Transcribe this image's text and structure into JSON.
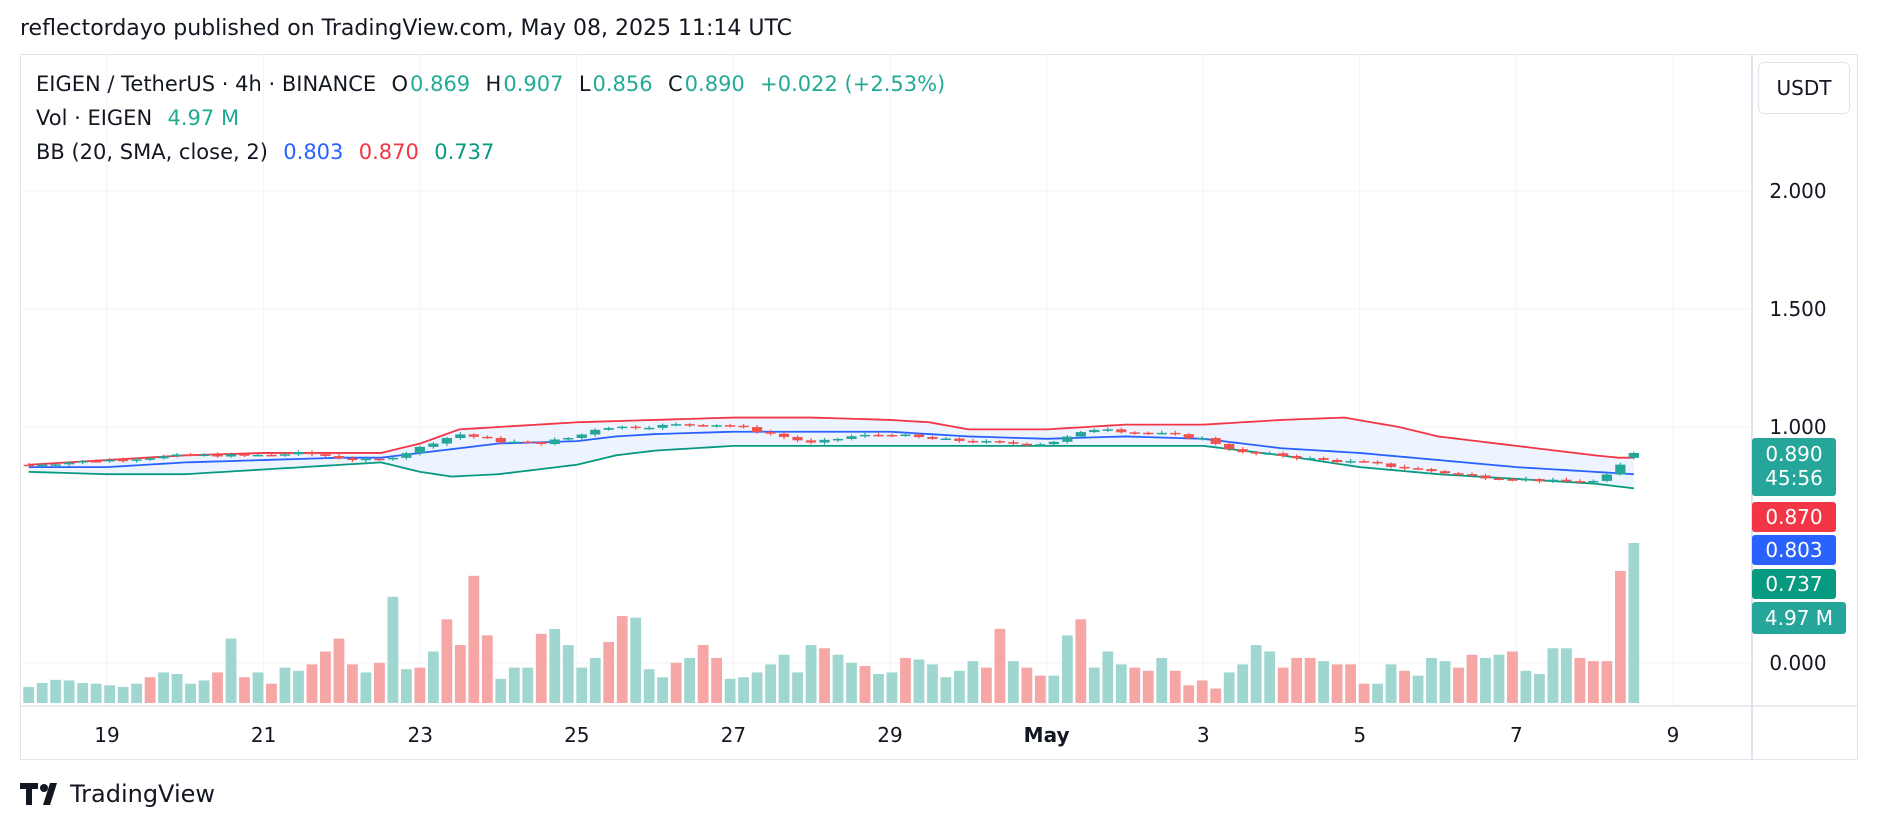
{
  "header": {
    "publisher": "reflectordayo published on TradingView.com, May 08, 2025 11:14 UTC"
  },
  "legend": {
    "symbol": "EIGEN / TetherUS · 4h · BINANCE",
    "o_label": "O",
    "o_value": "0.869",
    "h_label": "H",
    "h_value": "0.907",
    "l_label": "L",
    "l_value": "0.856",
    "c_label": "C",
    "c_value": "0.890",
    "change": "+0.022 (+2.53%)",
    "vol_label": "Vol · EIGEN",
    "vol_value": "4.97 M",
    "bb_label": "BB (20, SMA, close, 2)",
    "bb_basis": "0.803",
    "bb_upper": "0.870",
    "bb_lower": "0.737"
  },
  "currency_button": "USDT",
  "badges": {
    "price": "0.890",
    "countdown": "45:56",
    "upper": "0.870",
    "basis": "0.803",
    "lower": "0.737",
    "volume": "4.97 M"
  },
  "brand": {
    "name": "TradingView"
  },
  "colors": {
    "up": "#26a69a",
    "down": "#ef5350",
    "vol_up": "#9fd6cf",
    "vol_down": "#f6a6a4",
    "bb_upper": "#f23645",
    "bb_basis": "#2962ff",
    "bb_lower": "#089981",
    "bb_fill": "#e9f1ff"
  },
  "chart_data": {
    "type": "candlestick",
    "interval": "4h",
    "price_axis": {
      "ticks": [
        "2.000",
        "1.500",
        "1.000",
        "0.000"
      ],
      "tick_values": [
        2.0,
        1.5,
        1.0,
        0.0
      ]
    },
    "x_axis": {
      "ticks": [
        "19",
        "21",
        "23",
        "25",
        "27",
        "29",
        "May",
        "3",
        "5",
        "7",
        "9"
      ],
      "tick_days": [
        19,
        21,
        23,
        25,
        27,
        29,
        31,
        33,
        35,
        37,
        39
      ]
    },
    "price_range": [
      0.0,
      2.0
    ],
    "volume_max": 4.97,
    "candle_close_anchors": [
      [
        18.0,
        0.84
      ],
      [
        19.0,
        0.86
      ],
      [
        20.0,
        0.88
      ],
      [
        21.0,
        0.88
      ],
      [
        21.5,
        0.89
      ],
      [
        22.2,
        0.86
      ],
      [
        22.5,
        0.86
      ],
      [
        22.9,
        0.9
      ],
      [
        23.2,
        0.94
      ],
      [
        23.5,
        0.97
      ],
      [
        24.0,
        0.94
      ],
      [
        24.5,
        0.93
      ],
      [
        25.0,
        0.96
      ],
      [
        25.3,
        1.0
      ],
      [
        25.8,
        1.0
      ],
      [
        26.3,
        1.01
      ],
      [
        26.9,
        1.01
      ],
      [
        27.5,
        0.97
      ],
      [
        28.0,
        0.93
      ],
      [
        28.5,
        0.96
      ],
      [
        29.0,
        0.97
      ],
      [
        29.5,
        0.95
      ],
      [
        30.0,
        0.94
      ],
      [
        30.5,
        0.93
      ],
      [
        31.0,
        0.93
      ],
      [
        31.3,
        0.96
      ],
      [
        31.7,
        1.0
      ],
      [
        32.0,
        0.98
      ],
      [
        32.5,
        0.97
      ],
      [
        33.0,
        0.95
      ],
      [
        33.5,
        0.89
      ],
      [
        34.0,
        0.88
      ],
      [
        34.5,
        0.86
      ],
      [
        35.0,
        0.85
      ],
      [
        35.5,
        0.83
      ],
      [
        36.0,
        0.81
      ],
      [
        36.5,
        0.79
      ],
      [
        37.0,
        0.78
      ],
      [
        37.5,
        0.77
      ],
      [
        38.0,
        0.77
      ],
      [
        38.2,
        0.8
      ],
      [
        38.4,
        0.86
      ],
      [
        38.5,
        0.89
      ]
    ],
    "bb_upper_anchors": [
      [
        18.0,
        0.84
      ],
      [
        19.0,
        0.86
      ],
      [
        20.0,
        0.88
      ],
      [
        21.0,
        0.89
      ],
      [
        22.0,
        0.89
      ],
      [
        22.5,
        0.89
      ],
      [
        23.0,
        0.93
      ],
      [
        23.5,
        0.99
      ],
      [
        24.0,
        1.0
      ],
      [
        25.0,
        1.02
      ],
      [
        26.0,
        1.03
      ],
      [
        27.0,
        1.04
      ],
      [
        28.0,
        1.04
      ],
      [
        29.0,
        1.03
      ],
      [
        29.5,
        1.02
      ],
      [
        30.0,
        0.99
      ],
      [
        31.0,
        0.99
      ],
      [
        32.0,
        1.01
      ],
      [
        33.0,
        1.01
      ],
      [
        34.0,
        1.03
      ],
      [
        34.8,
        1.04
      ],
      [
        35.5,
        1.0
      ],
      [
        36.0,
        0.96
      ],
      [
        37.0,
        0.92
      ],
      [
        38.0,
        0.88
      ],
      [
        38.3,
        0.87
      ],
      [
        38.5,
        0.87
      ]
    ],
    "bb_basis_anchors": [
      [
        18.0,
        0.83
      ],
      [
        19.0,
        0.83
      ],
      [
        20.0,
        0.85
      ],
      [
        21.0,
        0.86
      ],
      [
        22.0,
        0.87
      ],
      [
        22.5,
        0.87
      ],
      [
        23.0,
        0.89
      ],
      [
        23.5,
        0.91
      ],
      [
        24.0,
        0.93
      ],
      [
        25.0,
        0.94
      ],
      [
        25.5,
        0.96
      ],
      [
        26.0,
        0.97
      ],
      [
        27.0,
        0.98
      ],
      [
        28.0,
        0.98
      ],
      [
        29.0,
        0.98
      ],
      [
        30.0,
        0.96
      ],
      [
        31.0,
        0.95
      ],
      [
        32.0,
        0.96
      ],
      [
        33.0,
        0.95
      ],
      [
        34.0,
        0.91
      ],
      [
        35.0,
        0.89
      ],
      [
        36.0,
        0.86
      ],
      [
        37.0,
        0.83
      ],
      [
        38.0,
        0.81
      ],
      [
        38.5,
        0.8
      ]
    ],
    "bb_lower_anchors": [
      [
        18.0,
        0.81
      ],
      [
        19.0,
        0.8
      ],
      [
        20.0,
        0.8
      ],
      [
        21.0,
        0.82
      ],
      [
        21.5,
        0.83
      ],
      [
        22.5,
        0.85
      ],
      [
        23.0,
        0.81
      ],
      [
        23.4,
        0.79
      ],
      [
        24.0,
        0.8
      ],
      [
        25.0,
        0.84
      ],
      [
        25.5,
        0.88
      ],
      [
        26.0,
        0.9
      ],
      [
        27.0,
        0.92
      ],
      [
        28.0,
        0.92
      ],
      [
        29.0,
        0.92
      ],
      [
        31.0,
        0.92
      ],
      [
        33.0,
        0.92
      ],
      [
        34.0,
        0.88
      ],
      [
        35.0,
        0.83
      ],
      [
        36.0,
        0.8
      ],
      [
        37.0,
        0.78
      ],
      [
        38.0,
        0.76
      ],
      [
        38.5,
        0.74
      ]
    ],
    "volume_bars": [
      0.5,
      0.62,
      0.72,
      0.7,
      0.62,
      0.6,
      0.55,
      0.5,
      0.6,
      0.8,
      0.95,
      0.9,
      0.6,
      0.7,
      0.95,
      2.0,
      0.8,
      0.95,
      0.6,
      1.1,
      1.0,
      1.2,
      1.6,
      2.0,
      1.2,
      0.95,
      1.25,
      3.3,
      1.05,
      1.1,
      1.6,
      2.6,
      1.8,
      3.95,
      2.1,
      0.75,
      1.1,
      1.1,
      2.15,
      2.3,
      1.8,
      1.1,
      1.4,
      1.9,
      2.7,
      2.65,
      1.05,
      0.8,
      1.25,
      1.4,
      1.8,
      1.4,
      0.75,
      0.8,
      0.95,
      1.2,
      1.5,
      0.95,
      1.8,
      1.7,
      1.5,
      1.25,
      1.15,
      0.9,
      0.95,
      1.4,
      1.35,
      1.2,
      0.8,
      1.0,
      1.3,
      1.1,
      2.3,
      1.3,
      1.1,
      0.85,
      0.85,
      2.1,
      2.6,
      1.1,
      1.6,
      1.2,
      1.1,
      1.0,
      1.4,
      1.0,
      0.55,
      0.7,
      0.45,
      0.95,
      1.2,
      1.8,
      1.6,
      1.1,
      1.4,
      1.4,
      1.3,
      1.2,
      1.2,
      0.6,
      0.6,
      1.2,
      1.0,
      0.85,
      1.4,
      1.3,
      1.1,
      1.5,
      1.4,
      1.5,
      1.6,
      1.0,
      0.9,
      1.7,
      1.7,
      1.4,
      1.3,
      1.3,
      4.1,
      4.97
    ],
    "volume_down_indices": [
      9,
      14,
      16,
      18,
      21,
      22,
      23,
      24,
      26,
      29,
      31,
      32,
      33,
      34,
      38,
      43,
      44,
      48,
      50,
      51,
      59,
      62,
      65,
      71,
      72,
      74,
      75,
      78,
      82,
      83,
      85,
      86,
      87,
      88,
      93,
      94,
      95,
      97,
      98,
      99,
      102,
      106,
      107,
      110,
      115,
      116,
      117,
      118
    ]
  }
}
